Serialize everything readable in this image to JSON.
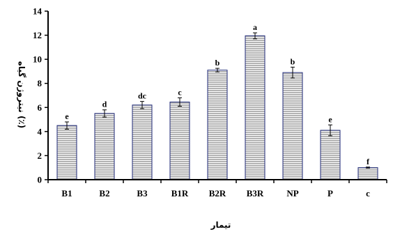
{
  "chart_data": {
    "type": "bar",
    "xlabel": "تیمار",
    "ylabel": "نیتروژن گیاه (٪)",
    "ylim": [
      0,
      14
    ],
    "yticks": [
      0,
      2,
      4,
      6,
      8,
      10,
      12,
      14
    ],
    "grid": false,
    "legend": "none",
    "categories": [
      "B1",
      "B2",
      "B3",
      "B1R",
      "B2R",
      "B3R",
      "NP",
      "P",
      "c"
    ],
    "values": [
      4.5,
      5.5,
      6.2,
      6.45,
      9.1,
      11.95,
      8.9,
      4.1,
      1.0
    ],
    "errors": [
      0.3,
      0.3,
      0.3,
      0.35,
      0.15,
      0.25,
      0.45,
      0.45,
      0.05
    ],
    "significance_letters": [
      "e",
      "d",
      "dc",
      "c",
      "b",
      "a",
      "b",
      "e",
      "f"
    ]
  },
  "colors": {
    "bar_fill": "#b3b3b3",
    "bar_stripe": "#ffffff",
    "bar_stroke": "#1f2a78",
    "axis": "#000000"
  }
}
